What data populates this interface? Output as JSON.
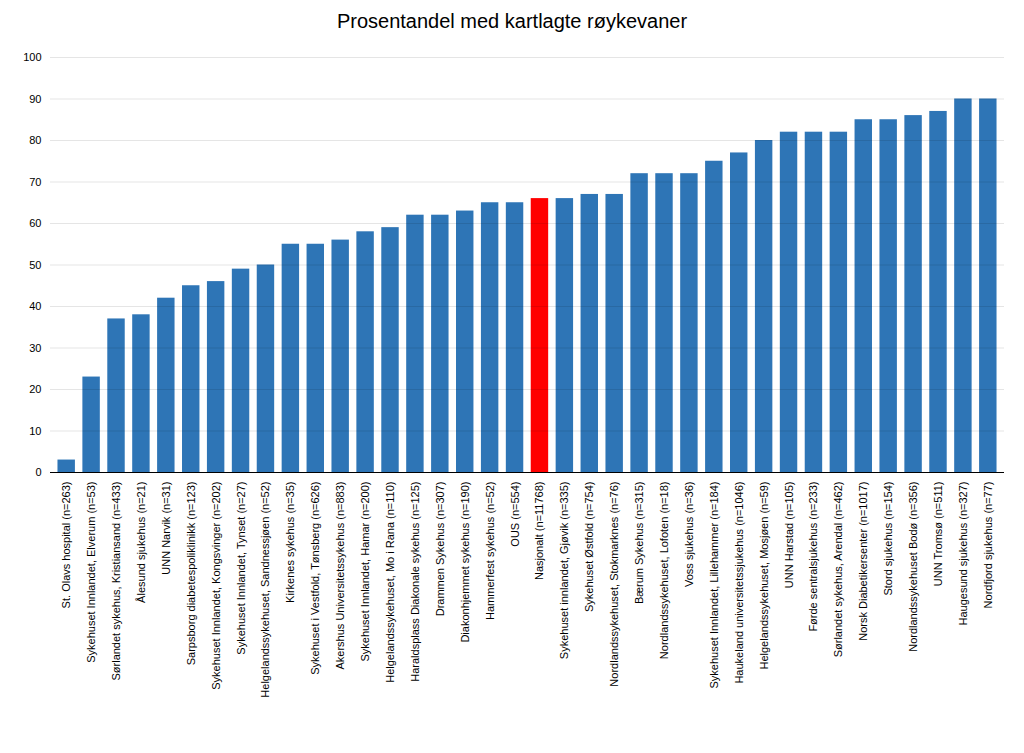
{
  "chart_data": {
    "type": "bar",
    "title": "Prosentandel med kartlagte røykevaner",
    "categories": [
      "St. Olavs hospital (n=263)",
      "Sykehuset Innlandet, Elverum (n=53)",
      "Sørlandet sykehus, Kristiansand (n=433)",
      "Ålesund sjukehus (n=21)",
      "UNN Narvik (n=31)",
      "Sarpsborg diabetespoliklinikk (n=123)",
      "Sykehuset Innlandet, Kongsvinger (n=202)",
      "Sykehuset Innlandet, Tynset (n=27)",
      "Helgelandssykehuset, Sandnessjøen (n=52)",
      "Kirkenes sykehus (n=35)",
      "Sykehuset i Vestfold, Tønsberg (n=626)",
      "Akershus Universitetssykehus (n=883)",
      "Sykehuset Innlandet, Hamar (n=200)",
      "Helgelandssykehuset, Mo i Rana (n=110)",
      "Haraldsplass Diakonale sykehus (n=125)",
      "Drammen Sykehus (n=307)",
      "Diakonhjemmet sykehus (n=190)",
      "Hammerfest sykehus (n=52)",
      "OUS (n=554)",
      "Nasjonalt (n=11768)",
      "Sykehuset innlandet, Gjøvik (n=335)",
      "Sykehuset Østfold (n=754)",
      "Nordlandssykehuset, Stokmarknes (n=76)",
      "Bærum Sykehus (n=315)",
      "Nordlandssykehuset, Lofoten (n=18)",
      "Voss sjukehus (n=36)",
      "Sykehuset Innlandet, Lillehammer (n=184)",
      "Haukeland universitetssjukehus (n=1046)",
      "Helgelandssykehuset, Mosjøen (n=59)",
      "UNN Harstad (n=105)",
      "Førde sentralsjukehus (n=233)",
      "Sørlandet sykehus, Arendal (n=462)",
      "Norsk Diabetikersenter (n=1017)",
      "Stord sjukehus (n=154)",
      "Nordlandssykehuset Bodø (n=356)",
      "UNN Tromsø (n=511)",
      "Haugesund sjukehus (n=327)",
      "Nordfjord sjukehus (n=77)"
    ],
    "values": [
      3,
      23,
      37,
      38,
      42,
      45,
      46,
      49,
      50,
      55,
      55,
      56,
      58,
      59,
      62,
      62,
      63,
      65,
      65,
      66,
      66,
      67,
      67,
      72,
      72,
      72,
      75,
      77,
      80,
      82,
      82,
      82,
      85,
      85,
      86,
      87,
      90,
      90
    ],
    "colors": [
      "#2E75B6",
      "#2E75B6",
      "#2E75B6",
      "#2E75B6",
      "#2E75B6",
      "#2E75B6",
      "#2E75B6",
      "#2E75B6",
      "#2E75B6",
      "#2E75B6",
      "#2E75B6",
      "#2E75B6",
      "#2E75B6",
      "#2E75B6",
      "#2E75B6",
      "#2E75B6",
      "#2E75B6",
      "#2E75B6",
      "#2E75B6",
      "#FF0000",
      "#2E75B6",
      "#2E75B6",
      "#2E75B6",
      "#2E75B6",
      "#2E75B6",
      "#2E75B6",
      "#2E75B6",
      "#2E75B6",
      "#2E75B6",
      "#2E75B6",
      "#2E75B6",
      "#2E75B6",
      "#2E75B6",
      "#2E75B6",
      "#2E75B6",
      "#2E75B6",
      "#2E75B6",
      "#2E75B6"
    ],
    "ylim": [
      0,
      100
    ],
    "yticks": [
      0,
      10,
      20,
      30,
      40,
      50,
      60,
      70,
      80,
      90,
      100
    ],
    "grid": true
  }
}
